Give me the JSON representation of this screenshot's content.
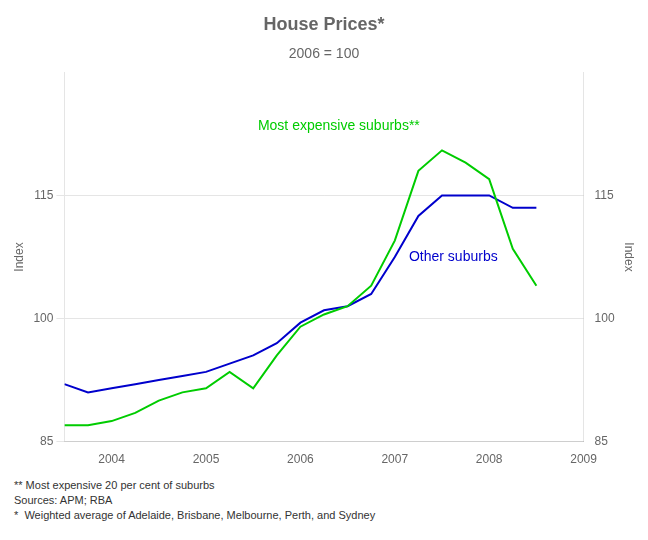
{
  "chart_data": {
    "type": "line",
    "title": "House Prices*",
    "subtitle": "2006 = 100",
    "ylabel": "Index",
    "y2label": "Index",
    "x": [
      2003.5,
      2003.75,
      2004.0,
      2004.25,
      2004.5,
      2004.75,
      2005.0,
      2005.25,
      2005.5,
      2005.75,
      2006.0,
      2006.25,
      2006.5,
      2006.75,
      2007.0,
      2007.25,
      2007.5,
      2007.75,
      2008.0,
      2008.25,
      2008.5
    ],
    "series": [
      {
        "name": "Most expensive suburbs**",
        "color": "#00cc00",
        "values": [
          87.0,
          87.0,
          87.5,
          88.5,
          90.0,
          91.0,
          91.5,
          93.5,
          91.5,
          95.5,
          99.0,
          100.5,
          101.5,
          104.0,
          109.5,
          118.0,
          120.5,
          119.0,
          117.0,
          108.5,
          104.0
        ]
      },
      {
        "name": "Other suburbs",
        "color": "#0000cc",
        "values": [
          92.0,
          91.0,
          91.5,
          92.0,
          92.5,
          93.0,
          93.5,
          94.5,
          95.5,
          97.0,
          99.5,
          101.0,
          101.5,
          103.0,
          107.5,
          112.5,
          115.0,
          115.0,
          115.0,
          113.5,
          113.5
        ]
      }
    ],
    "xlim": [
      2003.5,
      2009.0
    ],
    "xticks": [
      2004,
      2005,
      2006,
      2007,
      2008,
      2009
    ],
    "ylim": [
      85,
      130
    ],
    "yticks": [
      85,
      100,
      115
    ],
    "y2lim": [
      85,
      130
    ],
    "y2ticks": [
      85,
      100,
      115
    ],
    "grid": "y",
    "annotations": [
      {
        "text": "Most expensive suburbs**",
        "x": 2005.55,
        "y": 123.5,
        "color": "#00cc00"
      },
      {
        "text": "Other suburbs",
        "x": 2007.15,
        "y": 107.5,
        "color": "#0000cc"
      }
    ],
    "footnotes": [
      "** Most expensive 20 per cent of suburbs",
      "Sources: APM; RBA",
      "*  Weighted average of Adelaide, Brisbane, Melbourne, Perth, and Sydney"
    ]
  }
}
